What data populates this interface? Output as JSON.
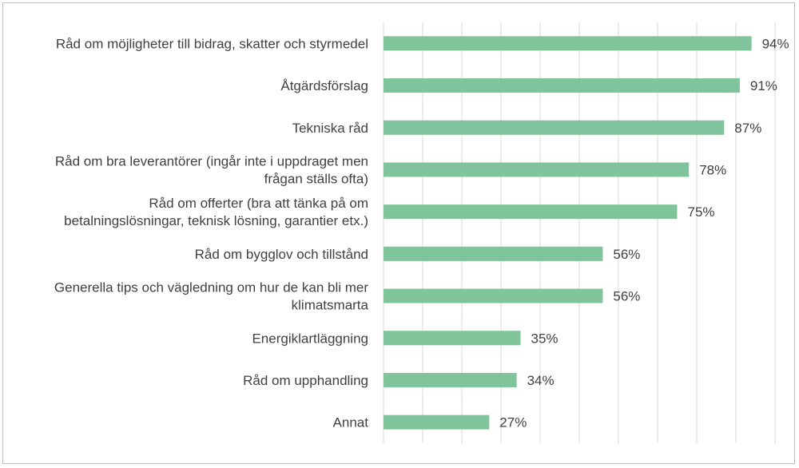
{
  "chart_data": {
    "type": "bar",
    "orientation": "horizontal",
    "categories": [
      [
        "Råd om möjligheter till bidrag, skatter och styrmedel"
      ],
      [
        "Åtgärdsförslag"
      ],
      [
        "Tekniska råd"
      ],
      [
        "Råd om bra leverantörer (ingår inte i uppdraget men",
        "frågan ställs ofta)"
      ],
      [
        "Råd om offerter (bra att tänka på om",
        "betalningslösningar, teknisk lösning, garantier etx.)"
      ],
      [
        "Råd om bygglov och tillstånd"
      ],
      [
        "Generella tips och vägledning om hur de kan bli mer",
        "klimatsmarta"
      ],
      [
        "Energiklartläggning"
      ],
      [
        "Råd om upphandling"
      ],
      [
        "Annat"
      ]
    ],
    "values": [
      94,
      91,
      87,
      78,
      75,
      56,
      56,
      35,
      34,
      27
    ],
    "value_labels": [
      "94%",
      "91%",
      "87%",
      "78%",
      "75%",
      "56%",
      "56%",
      "35%",
      "34%",
      "27%"
    ],
    "xlim": [
      0,
      100
    ],
    "grid_step": 10,
    "grid": true,
    "bar_color": "#7fc49a",
    "title": "",
    "xlabel": "",
    "ylabel": ""
  }
}
